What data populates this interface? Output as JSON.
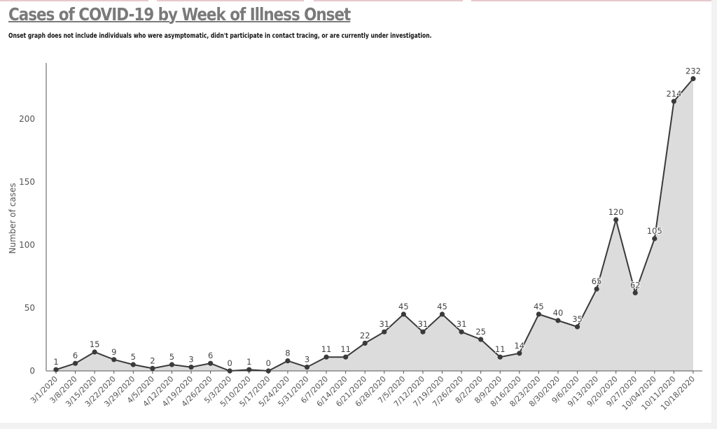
{
  "header": {
    "title": "Cases of COVID-19 by Week of Illness Onset",
    "subtitle": "Onset graph does not include individuals who were asymptomatic, didn't participate in contact tracing, or are currently under investigation."
  },
  "colors": {
    "line": "#3a3a3a",
    "area": "#dcdcdc",
    "axis": "#555555"
  },
  "chart_data": {
    "type": "area",
    "title": "Cases of COVID-19 by Week of Illness Onset",
    "subtitle": "Onset graph does not include individuals who were asymptomatic, didn't participate in contact tracing, or are currently under investigation.",
    "xlabel": "",
    "ylabel": "Number of cases",
    "ylim": [
      0,
      245
    ],
    "yticks": [
      0,
      50,
      100,
      150,
      200
    ],
    "grid": false,
    "legend": "none",
    "categories": [
      "3/1/2020",
      "3/8/2020",
      "3/15/2020",
      "3/22/2020",
      "3/29/2020",
      "4/5/2020",
      "4/12/2020",
      "4/19/2020",
      "4/26/2020",
      "5/3/2020",
      "5/10/2020",
      "5/17/2020",
      "5/24/2020",
      "5/31/2020",
      "6/7/2020",
      "6/14/2020",
      "6/21/2020",
      "6/28/2020",
      "7/5/2020",
      "7/12/2020",
      "7/19/2020",
      "7/26/2020",
      "8/2/2020",
      "8/9/2020",
      "8/16/2020",
      "8/23/2020",
      "8/30/2020",
      "9/6/2020",
      "9/13/2020",
      "9/20/2020",
      "9/27/2020",
      "10/04/2020",
      "10/11/2020",
      "10/18/2020"
    ],
    "series": [
      {
        "values": [
          1,
          6,
          15,
          9,
          5,
          2,
          5,
          3,
          6,
          0,
          1,
          0,
          8,
          3,
          11,
          11,
          22,
          31,
          45,
          31,
          45,
          31,
          25,
          11,
          14,
          45,
          40,
          35,
          65,
          120,
          62,
          105,
          214,
          232
        ]
      }
    ]
  }
}
